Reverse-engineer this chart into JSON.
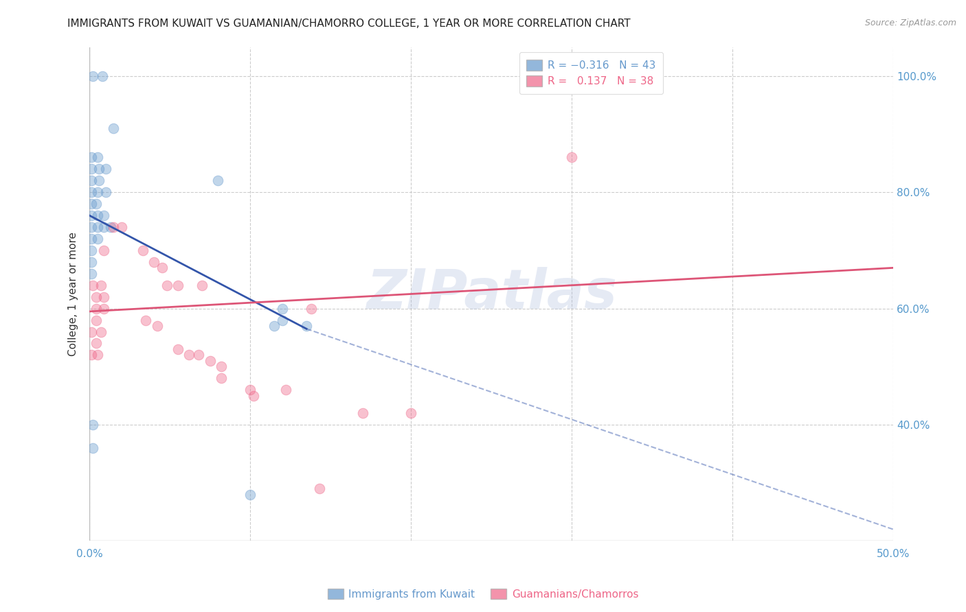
{
  "title": "IMMIGRANTS FROM KUWAIT VS GUAMANIAN/CHAMORRO COLLEGE, 1 YEAR OR MORE CORRELATION CHART",
  "source": "Source: ZipAtlas.com",
  "ylabel": "College, 1 year or more",
  "ytick_values": [
    1.0,
    0.8,
    0.6,
    0.4
  ],
  "xlim": [
    0.0,
    0.5
  ],
  "ylim": [
    0.2,
    1.05
  ],
  "blue_scatter": [
    [
      0.002,
      1.0
    ],
    [
      0.008,
      1.0
    ],
    [
      0.015,
      0.91
    ],
    [
      0.001,
      0.86
    ],
    [
      0.005,
      0.86
    ],
    [
      0.001,
      0.84
    ],
    [
      0.006,
      0.84
    ],
    [
      0.01,
      0.84
    ],
    [
      0.001,
      0.82
    ],
    [
      0.006,
      0.82
    ],
    [
      0.001,
      0.8
    ],
    [
      0.005,
      0.8
    ],
    [
      0.01,
      0.8
    ],
    [
      0.001,
      0.78
    ],
    [
      0.004,
      0.78
    ],
    [
      0.001,
      0.76
    ],
    [
      0.005,
      0.76
    ],
    [
      0.009,
      0.76
    ],
    [
      0.001,
      0.74
    ],
    [
      0.005,
      0.74
    ],
    [
      0.009,
      0.74
    ],
    [
      0.013,
      0.74
    ],
    [
      0.001,
      0.72
    ],
    [
      0.005,
      0.72
    ],
    [
      0.001,
      0.7
    ],
    [
      0.001,
      0.68
    ],
    [
      0.001,
      0.66
    ],
    [
      0.08,
      0.82
    ],
    [
      0.115,
      0.57
    ],
    [
      0.12,
      0.58
    ],
    [
      0.002,
      0.4
    ],
    [
      0.002,
      0.36
    ],
    [
      0.1,
      0.28
    ],
    [
      0.12,
      0.6
    ],
    [
      0.135,
      0.57
    ]
  ],
  "pink_scatter": [
    [
      0.002,
      0.64
    ],
    [
      0.007,
      0.64
    ],
    [
      0.004,
      0.62
    ],
    [
      0.009,
      0.62
    ],
    [
      0.004,
      0.6
    ],
    [
      0.009,
      0.6
    ],
    [
      0.004,
      0.58
    ],
    [
      0.001,
      0.56
    ],
    [
      0.007,
      0.56
    ],
    [
      0.004,
      0.54
    ],
    [
      0.001,
      0.52
    ],
    [
      0.005,
      0.52
    ],
    [
      0.009,
      0.7
    ],
    [
      0.015,
      0.74
    ],
    [
      0.02,
      0.74
    ],
    [
      0.033,
      0.7
    ],
    [
      0.04,
      0.68
    ],
    [
      0.045,
      0.67
    ],
    [
      0.048,
      0.64
    ],
    [
      0.055,
      0.64
    ],
    [
      0.07,
      0.64
    ],
    [
      0.035,
      0.58
    ],
    [
      0.042,
      0.57
    ],
    [
      0.055,
      0.53
    ],
    [
      0.062,
      0.52
    ],
    [
      0.068,
      0.52
    ],
    [
      0.075,
      0.51
    ],
    [
      0.082,
      0.5
    ],
    [
      0.082,
      0.48
    ],
    [
      0.1,
      0.46
    ],
    [
      0.102,
      0.45
    ],
    [
      0.122,
      0.46
    ],
    [
      0.17,
      0.42
    ],
    [
      0.2,
      0.42
    ],
    [
      0.138,
      0.6
    ],
    [
      0.3,
      0.86
    ],
    [
      0.143,
      0.29
    ]
  ],
  "blue_line": {
    "x0": 0.0,
    "y0": 0.76,
    "x1": 0.135,
    "y1": 0.565
  },
  "blue_line_dash": {
    "x0": 0.135,
    "y0": 0.565,
    "x1": 0.5,
    "y1": 0.22
  },
  "pink_line": {
    "x0": 0.0,
    "y0": 0.595,
    "x1": 0.5,
    "y1": 0.67
  },
  "watermark": "ZIPatlas",
  "scatter_size": 110,
  "scatter_alpha": 0.4,
  "blue_color": "#6699cc",
  "pink_color": "#ee6688",
  "blue_line_color": "#3355aa",
  "pink_line_color": "#dd5577",
  "grid_color": "#cccccc",
  "background_color": "#ffffff",
  "title_fontsize": 11,
  "axis_label_color": "#5599cc",
  "tick_color": "#5599cc"
}
